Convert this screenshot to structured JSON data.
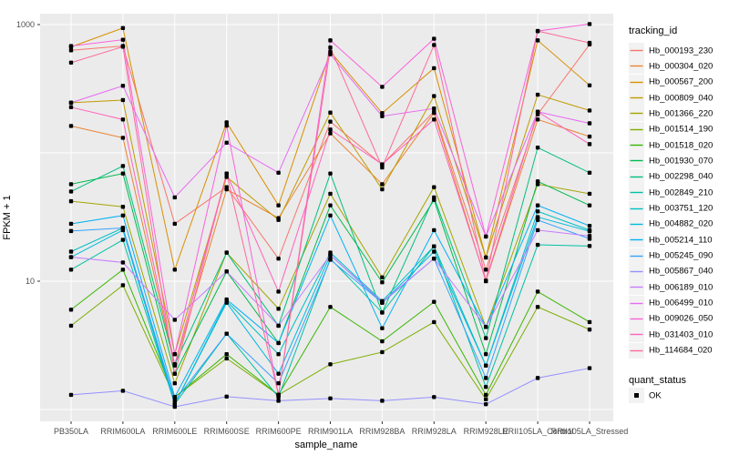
{
  "chart_data": {
    "type": "line",
    "title": "",
    "xlabel": "sample_name",
    "ylabel": "FPKM + 1",
    "y_scale": "log10",
    "ylim": [
      0.8,
      1216
    ],
    "grid": true,
    "legend_position": "right",
    "y_tick_labels": [
      "1000",
      "10"
    ],
    "y_tick_values": [
      1000,
      10
    ],
    "y_gridline_values": [
      1000,
      100,
      10,
      1
    ],
    "point_color": "#000000",
    "categories": [
      "PB350LA",
      "RRIM600LA",
      "RRIM600LE",
      "RRIM600SE",
      "RRIM600PE",
      "RRIM901LA",
      "RRIM928BA",
      "RRIM928LA",
      "RRIM928LE",
      "RRII105LA_Control",
      "RRII105LA_Stressed"
    ],
    "series": [
      {
        "name": "Hb_000193_230",
        "color": "#F8766D",
        "values": [
          630,
          680,
          28,
          54,
          15,
          175,
          81,
          210,
          12.3,
          200,
          700
        ]
      },
      {
        "name": "Hb_000304_020",
        "color": "#EA8331",
        "values": [
          162,
          131,
          2.2,
          52,
          31,
          142,
          57,
          205,
          10,
          182,
          134
        ]
      },
      {
        "name": "Hb_000567_200",
        "color": "#D89000",
        "values": [
          670,
          940,
          12.3,
          173,
          39,
          615,
          204,
          457,
          15.3,
          753,
          336
        ]
      },
      {
        "name": "Hb_000809_040",
        "color": "#C09B00",
        "values": [
          246,
          258,
          2.7,
          65,
          30,
          206,
          52,
          277,
          15.3,
          284,
          214
        ]
      },
      {
        "name": "Hb_001366_220",
        "color": "#A3A500",
        "values": [
          42,
          38,
          1.6,
          16.7,
          6.1,
          48,
          10.7,
          54,
          4.4,
          57,
          48
        ]
      },
      {
        "name": "Hb_001514_190",
        "color": "#7CAE00",
        "values": [
          4.5,
          9.3,
          1.25,
          2.5,
          1.3,
          2.25,
          2.8,
          4.8,
          1.2,
          6.3,
          4.2
        ]
      },
      {
        "name": "Hb_001518_020",
        "color": "#39B600",
        "values": [
          6,
          12.3,
          1.25,
          2.7,
          1.3,
          6.3,
          3.4,
          6.9,
          1.3,
          8.3,
          4.8
        ]
      },
      {
        "name": "Hb_001930_070",
        "color": "#00BB4E",
        "values": [
          57,
          69,
          1.9,
          11.9,
          3.3,
          39,
          9.8,
          43,
          2.7,
          60,
          39
        ]
      },
      {
        "name": "Hb_002298_040",
        "color": "#00BF7D",
        "values": [
          50,
          79,
          2.25,
          16.7,
          4.5,
          69,
          5.7,
          45,
          3.6,
          110,
          70
        ]
      },
      {
        "name": "Hb_002849_210",
        "color": "#00C1A3",
        "values": [
          12.3,
          21,
          1.1,
          3.9,
          1.25,
          15,
          5.7,
          18.7,
          1.5,
          19.2,
          18.8
        ]
      },
      {
        "name": "Hb_003751_120",
        "color": "#00BFC4",
        "values": [
          17,
          26,
          1.1,
          7,
          2.7,
          16.7,
          7,
          18.7,
          2.2,
          35,
          25
        ]
      },
      {
        "name": "Hb_004882_020",
        "color": "#00BADE",
        "values": [
          15.4,
          25,
          1.1,
          6.8,
          1.9,
          16,
          6.8,
          17,
          2.2,
          31.6,
          24.5
        ]
      },
      {
        "name": "Hb_005214_110",
        "color": "#00B0F6",
        "values": [
          28,
          32.5,
          1.25,
          7.2,
          3.3,
          32.5,
          4.3,
          25,
          4.4,
          39,
          27
        ]
      },
      {
        "name": "Hb_005245_090",
        "color": "#35A2FF",
        "values": [
          24.6,
          26,
          1.17,
          3.9,
          1.6,
          14.7,
          6.8,
          15,
          1.76,
          30,
          21.4
        ]
      },
      {
        "name": "Hb_005867_040",
        "color": "#9590FF",
        "values": [
          1.3,
          1.4,
          1.05,
          1.26,
          1.17,
          1.22,
          1.17,
          1.25,
          1.1,
          1.76,
          2.1
        ]
      },
      {
        "name": "Hb_006189_010",
        "color": "#C77CFF",
        "values": [
          15.4,
          14,
          5.0,
          11.9,
          4.5,
          16,
          6.9,
          15,
          4.4,
          25,
          22.5
        ]
      },
      {
        "name": "Hb_006499_010",
        "color": "#E76BF3",
        "values": [
          246,
          333,
          45,
          120,
          70,
          586,
          193,
          222,
          22.3,
          209,
          170
        ]
      },
      {
        "name": "Hb_009026_050",
        "color": "#FA62DB",
        "values": [
          680,
          762,
          2.7,
          163,
          1.3,
          753,
          327,
          775,
          22.3,
          890,
          1010
        ]
      },
      {
        "name": "Hb_031403_010",
        "color": "#FF62BC",
        "values": [
          227,
          182,
          2.25,
          69,
          8.3,
          152,
          81.5,
          182,
          10.1,
          209,
          117
        ]
      },
      {
        "name": "Hb_114684_020",
        "color": "#FF6A98",
        "values": [
          505,
          673,
          1.9,
          69,
          1.3,
          662,
          77,
          693,
          10.1,
          890,
          720
        ]
      }
    ]
  },
  "panel": {
    "background": "#EBEBEB",
    "gridline_color": "#FFFFFF",
    "tick_color": "#333333",
    "tick_text_color": "#4D4D4D"
  },
  "legend": {
    "tracking_title": "tracking_id",
    "quant_title": "quant_status",
    "quant_value": "OK"
  }
}
